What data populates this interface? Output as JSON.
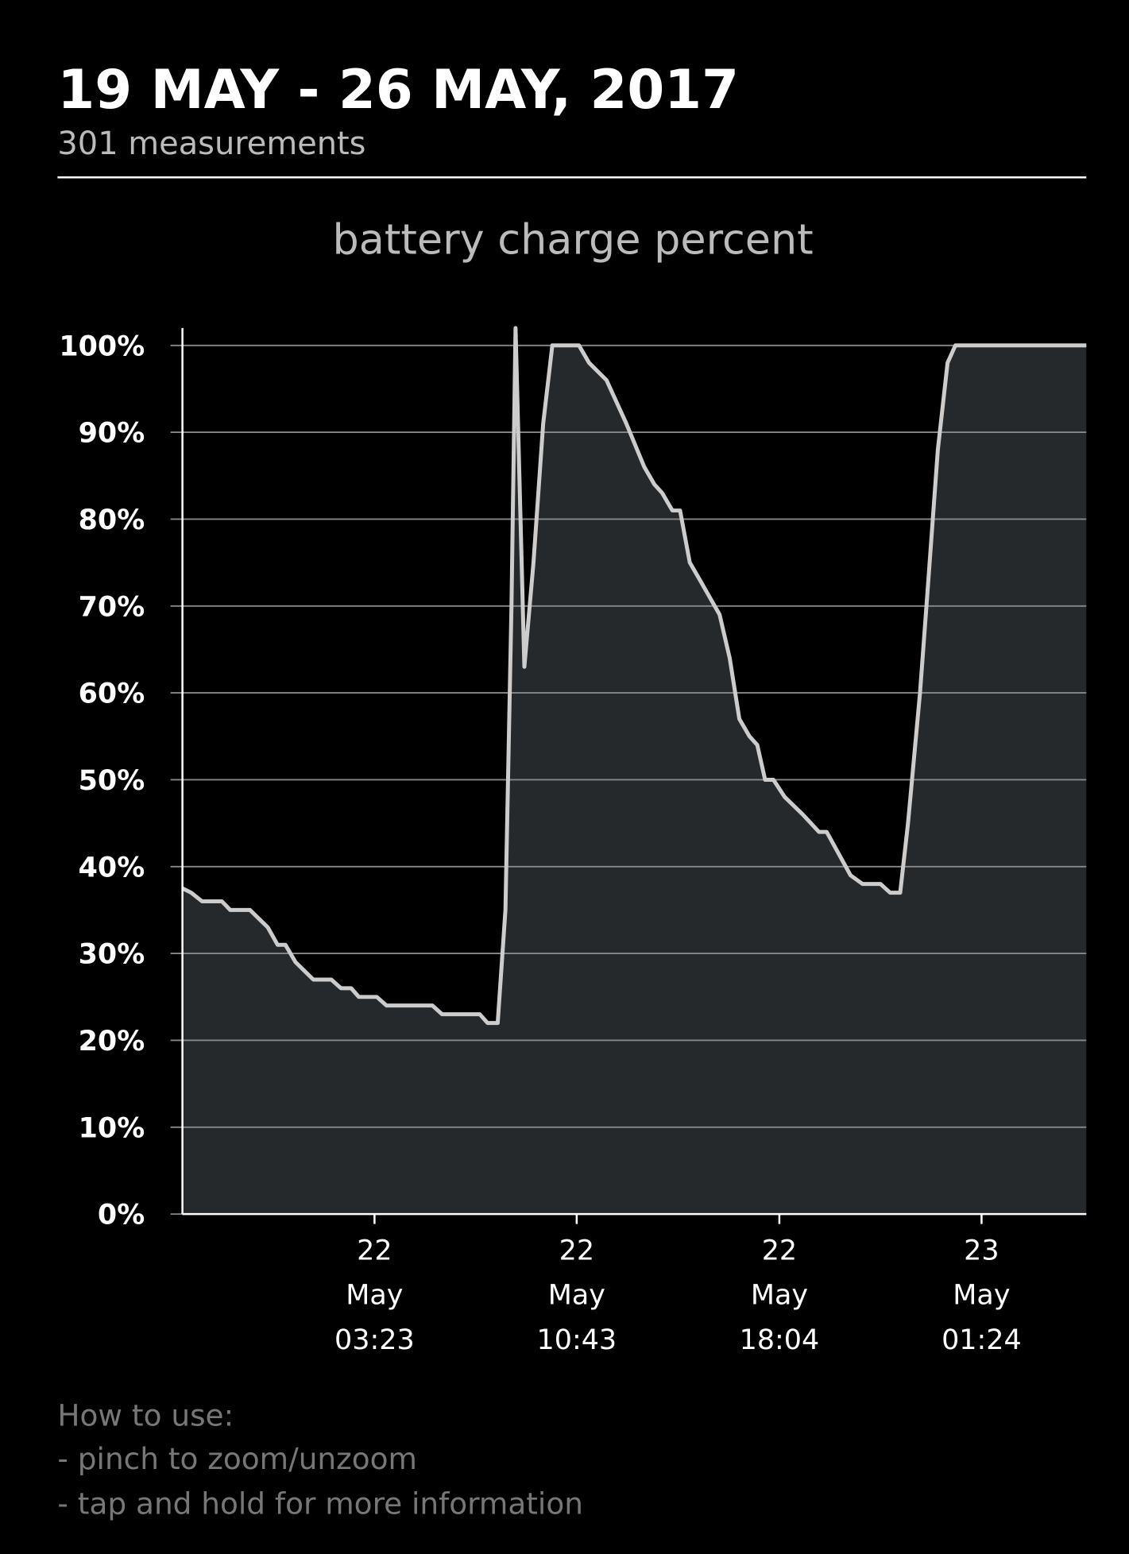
{
  "header": {
    "title": "19 MAY - 26 MAY, 2017",
    "subtitle": "301 measurements"
  },
  "chart_data": {
    "type": "area",
    "title": "battery charge percent",
    "color": "#cccccc",
    "fill": "#25292b",
    "grid": true,
    "x": [
      "2017-05-21 20:25",
      "2017-05-21 20:44",
      "2017-05-21 21:08",
      "2017-05-21 21:51",
      "2017-05-21 22:09",
      "2017-05-21 22:52",
      "2017-05-21 23:31",
      "2017-05-21 23:52",
      "2017-05-22 00:09",
      "2017-05-22 00:31",
      "2017-05-22 01:10",
      "2017-05-22 01:49",
      "2017-05-22 02:10",
      "2017-05-22 02:32",
      "2017-05-22 02:49",
      "2017-05-22 03:28",
      "2017-05-22 03:49",
      "2017-05-22 05:29",
      "2017-05-22 05:50",
      "2017-05-22 07:12",
      "2017-05-22 07:29",
      "2017-05-22 07:51",
      "2017-05-22 08:08",
      "2017-05-22 08:21",
      "2017-05-22 08:30",
      "2017-05-22 08:49",
      "2017-05-22 09:09",
      "2017-05-22 09:30",
      "2017-05-22 09:50",
      "2017-05-22 10:48",
      "2017-05-22 11:10",
      "2017-05-22 11:48",
      "2017-05-22 12:31",
      "2017-05-22 13:10",
      "2017-05-22 13:32",
      "2017-05-22 13:49",
      "2017-05-22 14:11",
      "2017-05-22 14:28",
      "2017-05-22 14:49",
      "2017-05-22 15:11",
      "2017-05-22 15:54",
      "2017-05-22 16:16",
      "2017-05-22 16:37",
      "2017-05-22 16:59",
      "2017-05-22 17:16",
      "2017-05-22 17:33",
      "2017-05-22 17:51",
      "2017-05-22 18:16",
      "2017-05-22 18:55",
      "2017-05-22 19:30",
      "2017-05-22 19:47",
      "2017-05-22 20:39",
      "2017-05-22 21:05",
      "2017-05-22 21:44",
      "2017-05-22 22:05",
      "2017-05-22 22:27",
      "2017-05-22 22:44",
      "2017-05-22 23:10",
      "2017-05-22 23:27",
      "2017-05-22 23:49",
      "2017-05-23 00:10",
      "2017-05-23 00:27",
      "2017-05-23 05:12"
    ],
    "values": [
      37.5,
      37,
      36,
      36,
      35,
      35,
      33,
      31,
      31,
      29,
      27,
      27,
      26,
      26,
      25,
      25,
      24,
      24,
      23,
      23,
      22,
      22,
      35,
      70,
      102,
      63,
      75,
      91,
      100,
      100,
      98,
      96,
      91,
      86,
      84,
      83,
      81,
      81,
      75,
      73,
      69,
      64,
      57,
      55,
      54,
      50,
      50,
      48,
      46,
      44,
      44,
      39,
      38,
      38,
      37,
      37,
      45,
      60,
      72,
      88,
      98,
      100,
      100
    ],
    "xlim": [
      "2017-05-21 20:25",
      "2017-05-23 05:12"
    ],
    "xticks": [
      {
        "value": "2017-05-22 03:23",
        "label": [
          "22",
          "May",
          "03:23"
        ]
      },
      {
        "value": "2017-05-22 10:43",
        "label": [
          "22",
          "May",
          "10:43"
        ]
      },
      {
        "value": "2017-05-22 18:04",
        "label": [
          "22",
          "May",
          "18:04"
        ]
      },
      {
        "value": "2017-05-23 01:24",
        "label": [
          "23",
          "May",
          "01:24"
        ]
      }
    ],
    "ylim": [
      0,
      102
    ],
    "yticks": [
      {
        "value": 0,
        "label": "0%"
      },
      {
        "value": 10,
        "label": "10%"
      },
      {
        "value": 20,
        "label": "20%"
      },
      {
        "value": 30,
        "label": "30%"
      },
      {
        "value": 40,
        "label": "40%"
      },
      {
        "value": 50,
        "label": "50%"
      },
      {
        "value": 60,
        "label": "60%"
      },
      {
        "value": 70,
        "label": "70%"
      },
      {
        "value": 80,
        "label": "80%"
      },
      {
        "value": 90,
        "label": "90%"
      },
      {
        "value": 100,
        "label": "100%"
      }
    ]
  },
  "instructions": [
    "How to use:",
    "- pinch to zoom/unzoom",
    "- tap and hold for more information"
  ]
}
